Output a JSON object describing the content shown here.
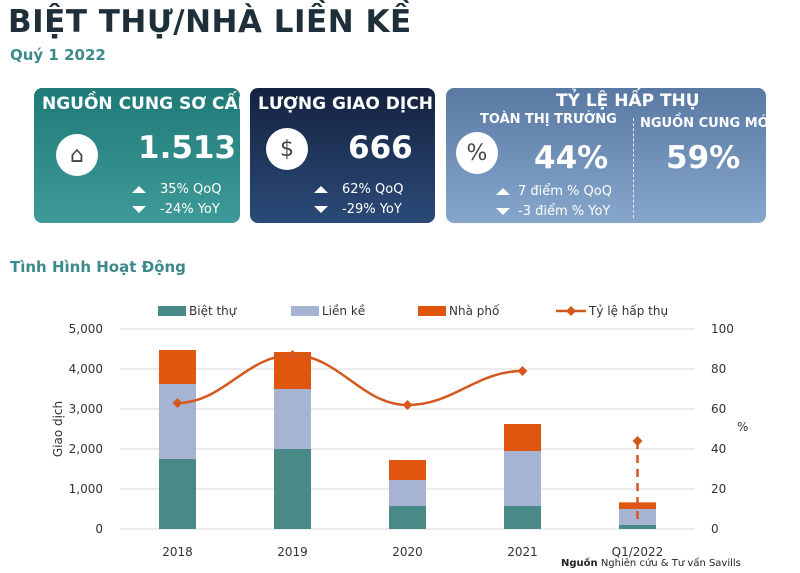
{
  "header": {
    "title": "BIỆT THỰ/NHÀ LIỀN KỀ",
    "subtitle": "Quý 1 2022"
  },
  "cards": {
    "supply": {
      "title": "NGUỒN CUNG SƠ CẤP",
      "value": "1.513",
      "qoq": "35% QoQ",
      "yoy": "-24% YoY",
      "icon": "house-icon"
    },
    "transactions": {
      "title": "LƯỢNG GIAO DỊCH",
      "value": "666",
      "qoq": "62% QoQ",
      "yoy": "-29% YoY",
      "icon": "coin-icon"
    },
    "absorption": {
      "title": "TỶ LỆ HẤP THỤ",
      "market_label": "TOÀN THỊ TRƯỜNG",
      "market_value": "44%",
      "qoq": "7 điểm % QoQ",
      "yoy": "-3 điểm % YoY",
      "new_label": "NGUỒN CUNG MỚI",
      "new_value": "59%",
      "icon": "percent-icon"
    }
  },
  "section_title": "Tình Hình Hoạt Động",
  "source": {
    "bold": "Nguồn",
    "text": "Nghiên cứu & Tư vấn Savills"
  },
  "chart_data": {
    "type": "bar",
    "stacked": true,
    "categories": [
      "2018",
      "2019",
      "2020",
      "2021",
      "Q1/2022"
    ],
    "series": [
      {
        "name": "Biệt thự",
        "color": "#4a8a86",
        "values": [
          1750,
          2000,
          575,
          575,
          100
        ]
      },
      {
        "name": "Liền kề",
        "color": "#a7b3d3",
        "values": [
          1875,
          1500,
          650,
          1375,
          400
        ]
      },
      {
        "name": "Nhà phố",
        "color": "#e0560f",
        "values": [
          850,
          925,
          500,
          675,
          166
        ]
      }
    ],
    "line": {
      "name": "Tỷ lệ hấp thụ",
      "color": "#d4581e",
      "values": [
        63,
        87,
        62,
        79,
        44
      ],
      "axis": "right"
    },
    "ylabel": "Giao dịch",
    "y2label": "%",
    "ylim": [
      0,
      5000
    ],
    "y2lim": [
      0,
      100
    ],
    "yticks": [
      "0",
      "1,000",
      "2,000",
      "3,000",
      "4,000",
      "5,000"
    ],
    "y2ticks": [
      "0",
      "20",
      "40",
      "60",
      "80",
      "100"
    ],
    "legend": "top"
  }
}
